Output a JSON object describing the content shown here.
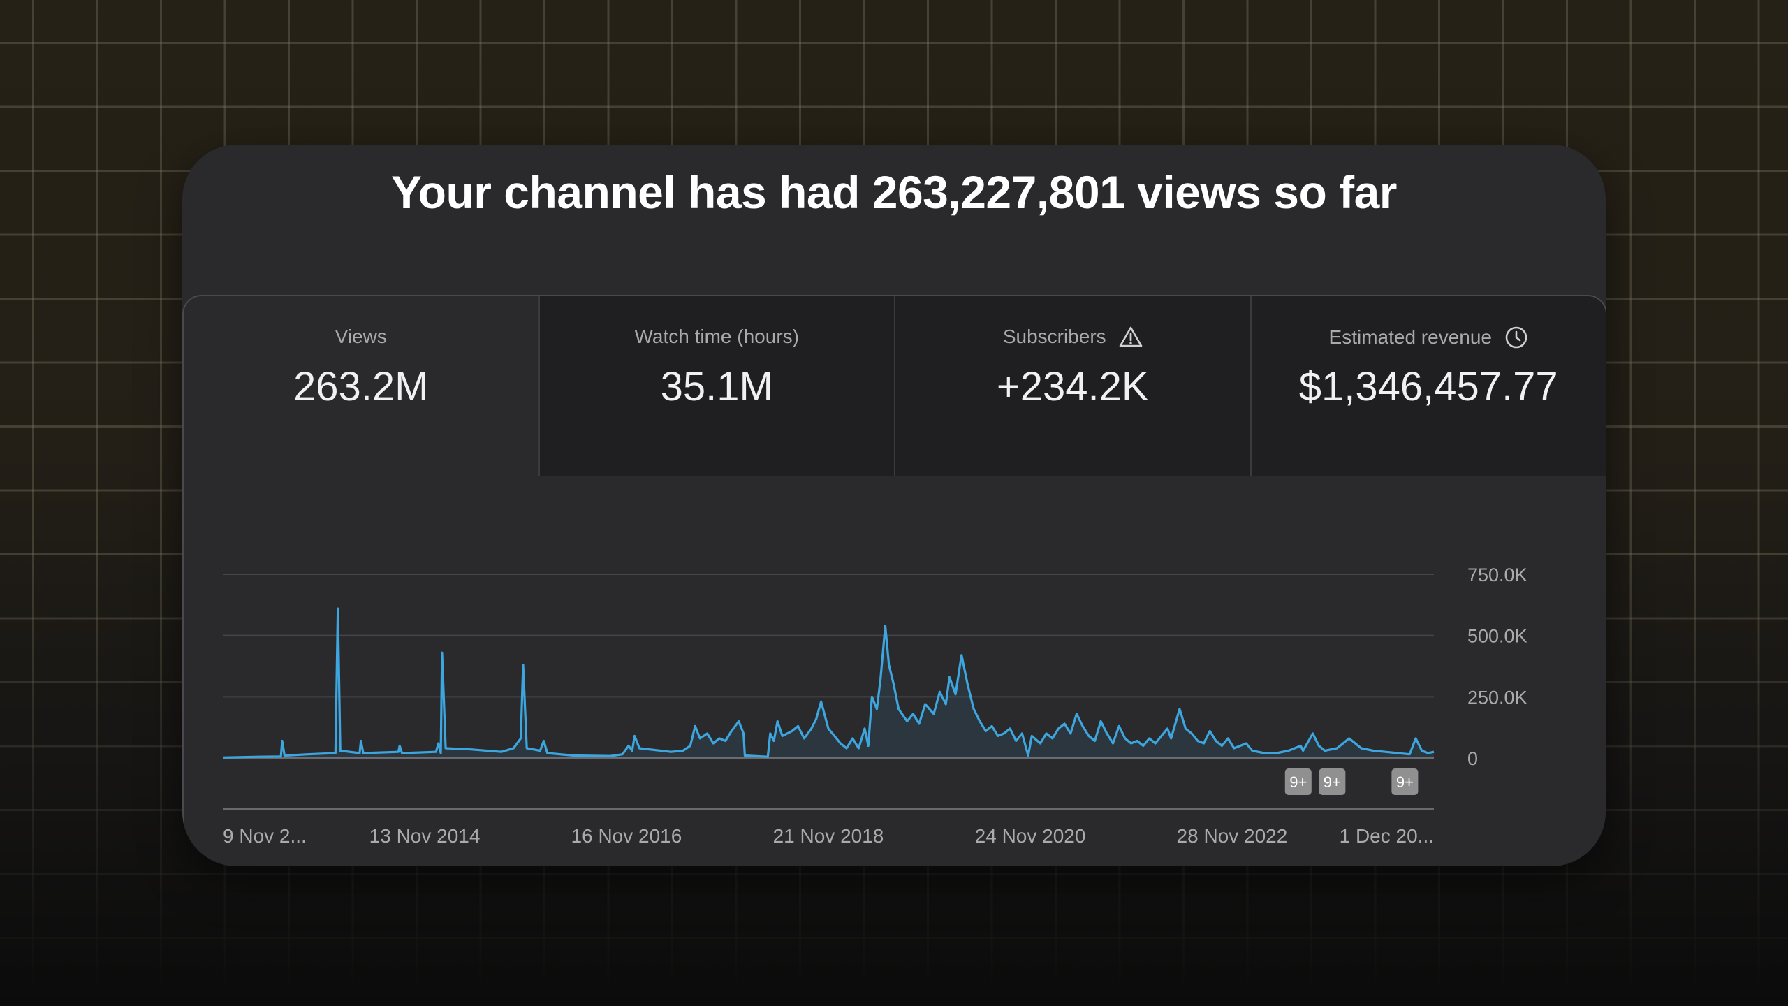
{
  "headline": "Your channel has had 263,227,801 views so far",
  "stats": [
    {
      "label": "Views",
      "value": "263.2M",
      "icon": ""
    },
    {
      "label": "Watch time (hours)",
      "value": "35.1M",
      "icon": ""
    },
    {
      "label": "Subscribers",
      "value": "+234.2K",
      "icon": "warning-icon"
    },
    {
      "label": "Estimated revenue",
      "value": "$1,346,457.77",
      "icon": "clock-icon"
    }
  ],
  "chart_data": {
    "type": "line",
    "title": "",
    "xlabel": "",
    "ylabel": "",
    "ylim": [
      0,
      750000
    ],
    "y_ticks": [
      0,
      250000,
      500000,
      750000
    ],
    "y_tick_labels": [
      "0",
      "250.0K",
      "500.0K",
      "750.0K"
    ],
    "x_tick_labels": [
      "9 Nov 2...",
      "13 Nov 2014",
      "16 Nov 2016",
      "21 Nov 2018",
      "24 Nov 2020",
      "28 Nov 2022",
      "1 Dec 20..."
    ],
    "x_tick_positions": [
      0.0,
      0.1667,
      0.3333,
      0.5,
      0.6667,
      0.8333,
      1.0
    ],
    "series_color": "#3ea6df",
    "series": [
      {
        "name": "Views",
        "points": [
          [
            0.0,
            2000
          ],
          [
            0.03,
            5000
          ],
          [
            0.048,
            6000
          ],
          [
            0.049,
            70000
          ],
          [
            0.051,
            10000
          ],
          [
            0.07,
            15000
          ],
          [
            0.093,
            20000
          ],
          [
            0.095,
            610000
          ],
          [
            0.097,
            30000
          ],
          [
            0.113,
            20000
          ],
          [
            0.114,
            70000
          ],
          [
            0.116,
            20000
          ],
          [
            0.145,
            25000
          ],
          [
            0.146,
            50000
          ],
          [
            0.148,
            20000
          ],
          [
            0.176,
            25000
          ],
          [
            0.178,
            60000
          ],
          [
            0.18,
            20000
          ],
          [
            0.181,
            430000
          ],
          [
            0.184,
            40000
          ],
          [
            0.205,
            35000
          ],
          [
            0.23,
            25000
          ],
          [
            0.24,
            40000
          ],
          [
            0.246,
            80000
          ],
          [
            0.248,
            380000
          ],
          [
            0.251,
            40000
          ],
          [
            0.262,
            30000
          ],
          [
            0.265,
            70000
          ],
          [
            0.268,
            20000
          ],
          [
            0.29,
            10000
          ],
          [
            0.32,
            8000
          ],
          [
            0.33,
            15000
          ],
          [
            0.335,
            50000
          ],
          [
            0.338,
            30000
          ],
          [
            0.34,
            90000
          ],
          [
            0.344,
            40000
          ],
          [
            0.37,
            25000
          ],
          [
            0.38,
            30000
          ],
          [
            0.386,
            50000
          ],
          [
            0.39,
            130000
          ],
          [
            0.394,
            80000
          ],
          [
            0.4,
            100000
          ],
          [
            0.405,
            60000
          ],
          [
            0.41,
            80000
          ],
          [
            0.415,
            70000
          ],
          [
            0.42,
            110000
          ],
          [
            0.426,
            150000
          ],
          [
            0.43,
            100000
          ],
          [
            0.431,
            10000
          ],
          [
            0.45,
            5000
          ],
          [
            0.452,
            100000
          ],
          [
            0.455,
            70000
          ],
          [
            0.458,
            150000
          ],
          [
            0.462,
            90000
          ],
          [
            0.47,
            110000
          ],
          [
            0.475,
            130000
          ],
          [
            0.48,
            80000
          ],
          [
            0.486,
            120000
          ],
          [
            0.49,
            160000
          ],
          [
            0.494,
            230000
          ],
          [
            0.5,
            120000
          ],
          [
            0.505,
            90000
          ],
          [
            0.51,
            60000
          ],
          [
            0.515,
            40000
          ],
          [
            0.52,
            80000
          ],
          [
            0.525,
            40000
          ],
          [
            0.53,
            120000
          ],
          [
            0.533,
            50000
          ],
          [
            0.536,
            250000
          ],
          [
            0.54,
            200000
          ],
          [
            0.543,
            320000
          ],
          [
            0.547,
            540000
          ],
          [
            0.55,
            380000
          ],
          [
            0.554,
            300000
          ],
          [
            0.558,
            200000
          ],
          [
            0.565,
            150000
          ],
          [
            0.57,
            180000
          ],
          [
            0.575,
            140000
          ],
          [
            0.58,
            220000
          ],
          [
            0.587,
            180000
          ],
          [
            0.592,
            270000
          ],
          [
            0.597,
            220000
          ],
          [
            0.6,
            330000
          ],
          [
            0.605,
            260000
          ],
          [
            0.61,
            420000
          ],
          [
            0.615,
            300000
          ],
          [
            0.62,
            200000
          ],
          [
            0.625,
            150000
          ],
          [
            0.63,
            110000
          ],
          [
            0.635,
            130000
          ],
          [
            0.64,
            90000
          ],
          [
            0.645,
            100000
          ],
          [
            0.65,
            120000
          ],
          [
            0.655,
            70000
          ],
          [
            0.66,
            100000
          ],
          [
            0.665,
            10000
          ],
          [
            0.668,
            90000
          ],
          [
            0.675,
            60000
          ],
          [
            0.68,
            100000
          ],
          [
            0.685,
            80000
          ],
          [
            0.69,
            120000
          ],
          [
            0.695,
            140000
          ],
          [
            0.7,
            100000
          ],
          [
            0.705,
            180000
          ],
          [
            0.71,
            130000
          ],
          [
            0.715,
            90000
          ],
          [
            0.72,
            70000
          ],
          [
            0.725,
            150000
          ],
          [
            0.73,
            100000
          ],
          [
            0.735,
            60000
          ],
          [
            0.74,
            130000
          ],
          [
            0.745,
            80000
          ],
          [
            0.75,
            60000
          ],
          [
            0.755,
            70000
          ],
          [
            0.76,
            50000
          ],
          [
            0.765,
            80000
          ],
          [
            0.77,
            60000
          ],
          [
            0.775,
            90000
          ],
          [
            0.78,
            120000
          ],
          [
            0.783,
            80000
          ],
          [
            0.79,
            200000
          ],
          [
            0.795,
            120000
          ],
          [
            0.8,
            100000
          ],
          [
            0.805,
            70000
          ],
          [
            0.81,
            60000
          ],
          [
            0.815,
            110000
          ],
          [
            0.82,
            70000
          ],
          [
            0.825,
            50000
          ],
          [
            0.83,
            80000
          ],
          [
            0.835,
            40000
          ],
          [
            0.84,
            50000
          ],
          [
            0.845,
            60000
          ],
          [
            0.85,
            30000
          ],
          [
            0.86,
            20000
          ],
          [
            0.87,
            20000
          ],
          [
            0.88,
            30000
          ],
          [
            0.89,
            50000
          ],
          [
            0.892,
            30000
          ],
          [
            0.9,
            100000
          ],
          [
            0.905,
            50000
          ],
          [
            0.91,
            30000
          ],
          [
            0.92,
            40000
          ],
          [
            0.925,
            60000
          ],
          [
            0.93,
            80000
          ],
          [
            0.94,
            40000
          ],
          [
            0.95,
            30000
          ],
          [
            0.96,
            25000
          ],
          [
            0.97,
            20000
          ],
          [
            0.98,
            15000
          ],
          [
            0.985,
            80000
          ],
          [
            0.99,
            30000
          ],
          [
            0.995,
            20000
          ],
          [
            1.0,
            25000
          ]
        ]
      }
    ],
    "annotations": [
      {
        "label": "9+",
        "x": 0.888
      },
      {
        "label": "9+",
        "x": 0.916
      },
      {
        "label": "9+",
        "x": 0.976
      }
    ]
  }
}
